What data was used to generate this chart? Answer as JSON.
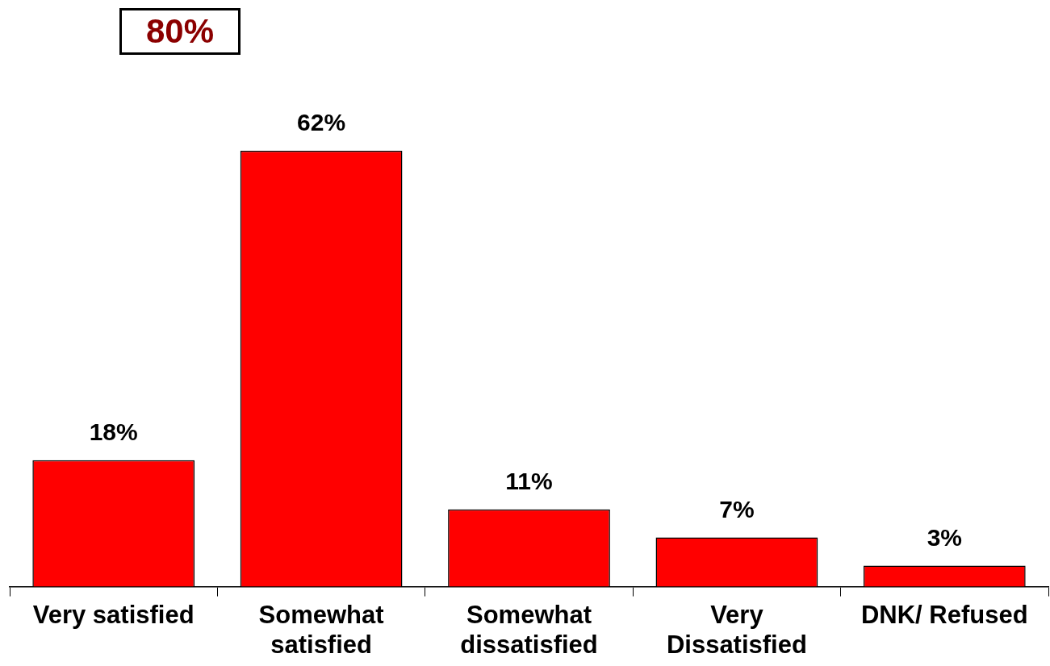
{
  "chart_data": {
    "type": "bar",
    "categories": [
      "Very satisfied",
      "Somewhat satisfied",
      "Somewhat dissatisfied",
      "Very Dissatisfied",
      "DNK/ Refused"
    ],
    "values": [
      18,
      62,
      11,
      7,
      3
    ],
    "value_labels": [
      "18%",
      "62%",
      "11%",
      "7%",
      "3%"
    ],
    "color": "#ff0000",
    "grid": false,
    "legend": false,
    "annotations": [
      "80%"
    ]
  }
}
